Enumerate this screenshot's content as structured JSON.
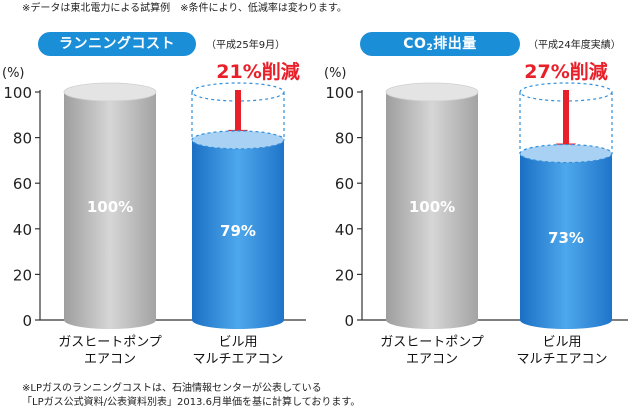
{
  "notes": {
    "top": "※データは東北電力による試算例　※条件により、低減率は変わります。",
    "bottom_line1": "※LPガスのランニングコストは、石油情報センターが公表している",
    "bottom_line2": "「LPガス公式資料/公表資料別表」2013.6月単価を基に計算しております。"
  },
  "colors": {
    "accent": "#1b8ed8",
    "reduction_text": "#e8202a",
    "arrow": "#e8202a",
    "gray_bar": "#bdbdbd",
    "blue_bar": "#2e8fdc"
  },
  "chart_data": [
    {
      "type": "bar",
      "title": "ランニングコスト",
      "period": "（平成25年9月）",
      "ylabel": "(%)",
      "ylim": [
        0,
        100
      ],
      "yticks": [
        "0",
        "20",
        "40",
        "60",
        "80",
        "100"
      ],
      "categories": [
        "ガスヒートポンプ\nエアコン",
        "ビル用\nマルチエアコン"
      ],
      "category_lines": [
        [
          "ガスヒートポンプ",
          "エアコン"
        ],
        [
          "ビル用",
          "マルチエアコン"
        ]
      ],
      "values": [
        100,
        79
      ],
      "value_labels": [
        "100%",
        "79%"
      ],
      "reduction_label": "21%削減"
    },
    {
      "type": "bar",
      "title": "CO2排出量",
      "title_main": "CO",
      "title_sub": "2",
      "title_rest": "排出量",
      "period": "（平成24年度実績）",
      "ylabel": "(%)",
      "ylim": [
        0,
        100
      ],
      "yticks": [
        "0",
        "20",
        "40",
        "60",
        "80",
        "100"
      ],
      "categories": [
        "ガスヒートポンプ\nエアコン",
        "ビル用\nマルチエアコン"
      ],
      "category_lines": [
        [
          "ガスヒートポンプ",
          "エアコン"
        ],
        [
          "ビル用",
          "マルチエアコン"
        ]
      ],
      "values": [
        100,
        73
      ],
      "value_labels": [
        "100%",
        "73%"
      ],
      "reduction_label": "27%削減"
    }
  ]
}
